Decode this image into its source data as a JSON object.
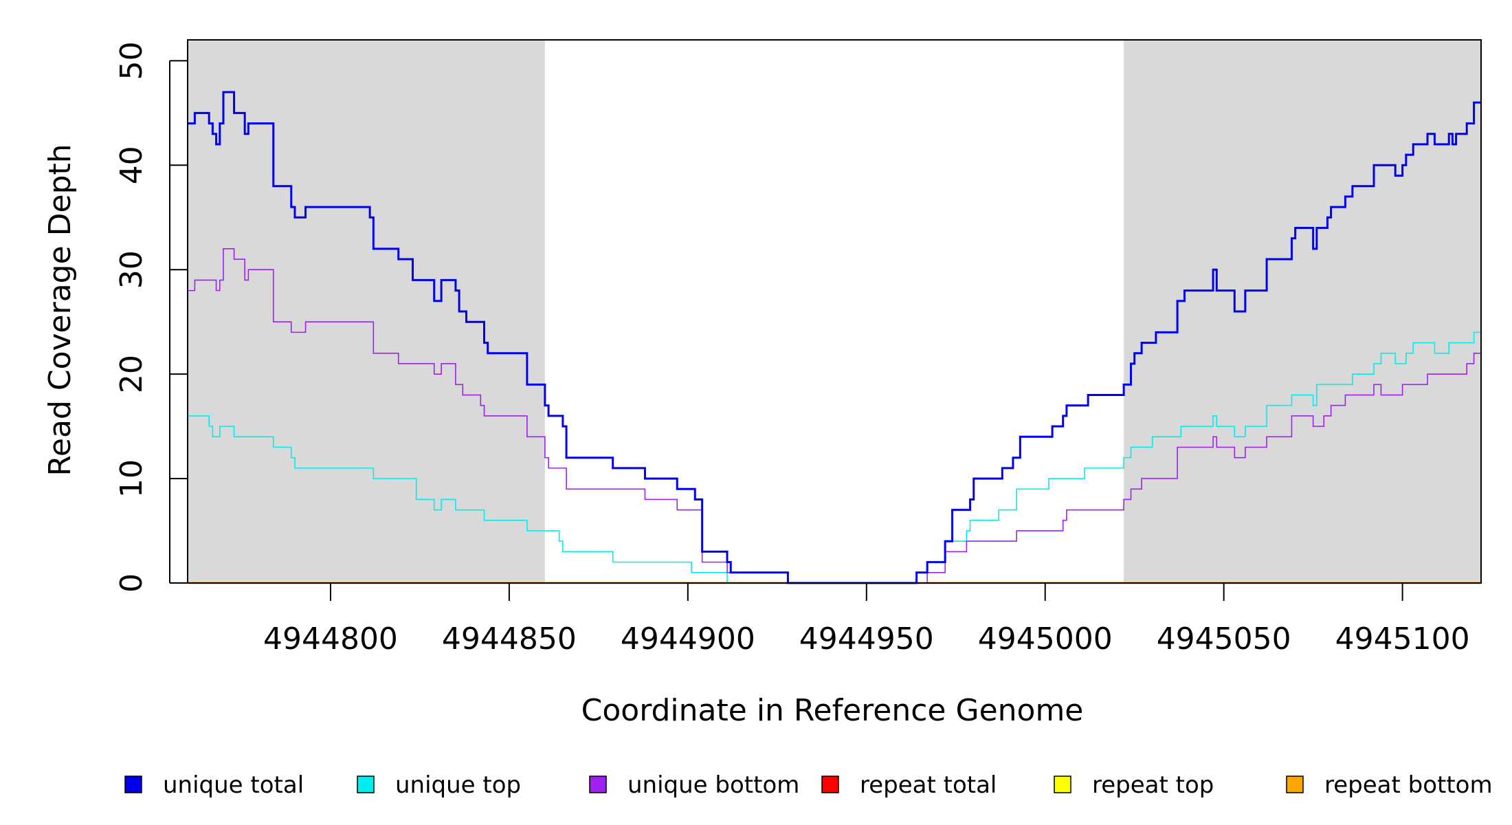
{
  "chart_data": {
    "type": "line",
    "title": "",
    "xlabel": "Coordinate in Reference Genome",
    "ylabel": "Read Coverage Depth",
    "xlim": [
      4944760,
      4945122
    ],
    "ylim": [
      0,
      52
    ],
    "x_ticks": [
      4944800,
      4944850,
      4944900,
      4944950,
      4945000,
      4945050,
      4945100
    ],
    "x_tick_labels": [
      "4944800",
      "4944850",
      "4944900",
      "4944950",
      "4945000",
      "4945050",
      "4945100"
    ],
    "y_ticks": [
      0,
      10,
      20,
      30,
      40,
      50
    ],
    "y_tick_labels": [
      "0",
      "10",
      "20",
      "30",
      "40",
      "50"
    ],
    "grid": false,
    "legend_position": "bottom",
    "shaded_regions": [
      {
        "x0": 4944760,
        "x1": 4944860,
        "color": "#d9d9d9"
      },
      {
        "x0": 4945022,
        "x1": 4945122,
        "color": "#d9d9d9"
      }
    ],
    "series": [
      {
        "name": "unique total",
        "color": "#0000ee",
        "width": 3,
        "points": [
          [
            4944760,
            44
          ],
          [
            4944762,
            45
          ],
          [
            4944766,
            44
          ],
          [
            4944767,
            43
          ],
          [
            4944768,
            42
          ],
          [
            4944769,
            44
          ],
          [
            4944770,
            47
          ],
          [
            4944773,
            45
          ],
          [
            4944776,
            43
          ],
          [
            4944777,
            44
          ],
          [
            4944784,
            38
          ],
          [
            4944789,
            36
          ],
          [
            4944790,
            35
          ],
          [
            4944793,
            36
          ],
          [
            4944811,
            35
          ],
          [
            4944812,
            32
          ],
          [
            4944819,
            31
          ],
          [
            4944823,
            29
          ],
          [
            4944829,
            27
          ],
          [
            4944831,
            29
          ],
          [
            4944835,
            28
          ],
          [
            4944836,
            26
          ],
          [
            4944838,
            25
          ],
          [
            4944843,
            23
          ],
          [
            4944844,
            22
          ],
          [
            4944855,
            19
          ],
          [
            4944860,
            17
          ],
          [
            4944861,
            16
          ],
          [
            4944865,
            15
          ],
          [
            4944866,
            12
          ],
          [
            4944879,
            11
          ],
          [
            4944888,
            10
          ],
          [
            4944897,
            9
          ],
          [
            4944902,
            8
          ],
          [
            4944904,
            3
          ],
          [
            4944911,
            2
          ],
          [
            4944912,
            1
          ],
          [
            4944928,
            0
          ],
          [
            4944964,
            1
          ],
          [
            4944967,
            2
          ],
          [
            4944972,
            4
          ],
          [
            4944974,
            7
          ],
          [
            4944979,
            8
          ],
          [
            4944980,
            10
          ],
          [
            4944988,
            11
          ],
          [
            4944991,
            12
          ],
          [
            4944993,
            14
          ],
          [
            4945002,
            15
          ],
          [
            4945005,
            16
          ],
          [
            4945006,
            17
          ],
          [
            4945012,
            18
          ],
          [
            4945022,
            19
          ],
          [
            4945024,
            21
          ],
          [
            4945025,
            22
          ],
          [
            4945027,
            23
          ],
          [
            4945031,
            24
          ],
          [
            4945037,
            27
          ],
          [
            4945039,
            28
          ],
          [
            4945047,
            30
          ],
          [
            4945048,
            28
          ],
          [
            4945053,
            26
          ],
          [
            4945056,
            28
          ],
          [
            4945062,
            31
          ],
          [
            4945069,
            33
          ],
          [
            4945070,
            34
          ],
          [
            4945075,
            32
          ],
          [
            4945076,
            34
          ],
          [
            4945079,
            35
          ],
          [
            4945080,
            36
          ],
          [
            4945084,
            37
          ],
          [
            4945086,
            38
          ],
          [
            4945092,
            40
          ],
          [
            4945098,
            39
          ],
          [
            4945100,
            40
          ],
          [
            4945101,
            41
          ],
          [
            4945103,
            42
          ],
          [
            4945107,
            43
          ],
          [
            4945109,
            42
          ],
          [
            4945113,
            43
          ],
          [
            4945114,
            42
          ],
          [
            4945115,
            43
          ],
          [
            4945118,
            44
          ],
          [
            4945120,
            46
          ]
        ]
      },
      {
        "name": "unique top",
        "color": "#00eeee",
        "width": 1.6,
        "points": [
          [
            4944760,
            16
          ],
          [
            4944766,
            15
          ],
          [
            4944767,
            14
          ],
          [
            4944769,
            15
          ],
          [
            4944773,
            14
          ],
          [
            4944784,
            13
          ],
          [
            4944789,
            12
          ],
          [
            4944790,
            11
          ],
          [
            4944812,
            10
          ],
          [
            4944824,
            8
          ],
          [
            4944829,
            7
          ],
          [
            4944831,
            8
          ],
          [
            4944835,
            7
          ],
          [
            4944843,
            6
          ],
          [
            4944855,
            5
          ],
          [
            4944864,
            4
          ],
          [
            4944865,
            3
          ],
          [
            4944872,
            3
          ],
          [
            4944879,
            2
          ],
          [
            4944901,
            1
          ],
          [
            4944911,
            0
          ],
          [
            4944964,
            1
          ],
          [
            4944967,
            2
          ],
          [
            4944972,
            4
          ],
          [
            4944978,
            5
          ],
          [
            4944979,
            6
          ],
          [
            4944987,
            7
          ],
          [
            4944992,
            9
          ],
          [
            4945001,
            10
          ],
          [
            4945011,
            11
          ],
          [
            4945022,
            12
          ],
          [
            4945024,
            13
          ],
          [
            4945030,
            14
          ],
          [
            4945038,
            15
          ],
          [
            4945047,
            16
          ],
          [
            4945048,
            15
          ],
          [
            4945053,
            14
          ],
          [
            4945056,
            15
          ],
          [
            4945062,
            17
          ],
          [
            4945069,
            18
          ],
          [
            4945075,
            17
          ],
          [
            4945076,
            19
          ],
          [
            4945086,
            20
          ],
          [
            4945092,
            21
          ],
          [
            4945094,
            22
          ],
          [
            4945098,
            21
          ],
          [
            4945101,
            22
          ],
          [
            4945103,
            23
          ],
          [
            4945109,
            22
          ],
          [
            4945113,
            23
          ],
          [
            4945115,
            23
          ],
          [
            4945120,
            24
          ]
        ]
      },
      {
        "name": "unique bottom",
        "color": "#a020f0",
        "width": 1.6,
        "points": [
          [
            4944760,
            28
          ],
          [
            4944762,
            29
          ],
          [
            4944768,
            28
          ],
          [
            4944769,
            29
          ],
          [
            4944770,
            32
          ],
          [
            4944773,
            31
          ],
          [
            4944776,
            29
          ],
          [
            4944777,
            30
          ],
          [
            4944784,
            25
          ],
          [
            4944789,
            24
          ],
          [
            4944793,
            25
          ],
          [
            4944812,
            22
          ],
          [
            4944819,
            21
          ],
          [
            4944829,
            20
          ],
          [
            4944831,
            21
          ],
          [
            4944835,
            19
          ],
          [
            4944837,
            18
          ],
          [
            4944842,
            17
          ],
          [
            4944843,
            16
          ],
          [
            4944855,
            14
          ],
          [
            4944860,
            12
          ],
          [
            4944861,
            11
          ],
          [
            4944866,
            9
          ],
          [
            4944888,
            8
          ],
          [
            4944897,
            7
          ],
          [
            4944904,
            2
          ],
          [
            4944911,
            1
          ],
          [
            4944928,
            0
          ],
          [
            4944967,
            1
          ],
          [
            4944972,
            3
          ],
          [
            4944978,
            4
          ],
          [
            4944992,
            5
          ],
          [
            4945005,
            6
          ],
          [
            4945006,
            7
          ],
          [
            4945022,
            8
          ],
          [
            4945024,
            9
          ],
          [
            4945027,
            10
          ],
          [
            4945037,
            13
          ],
          [
            4945047,
            14
          ],
          [
            4945048,
            13
          ],
          [
            4945053,
            12
          ],
          [
            4945056,
            13
          ],
          [
            4945062,
            14
          ],
          [
            4945069,
            16
          ],
          [
            4945075,
            15
          ],
          [
            4945078,
            16
          ],
          [
            4945080,
            17
          ],
          [
            4945084,
            18
          ],
          [
            4945092,
            19
          ],
          [
            4945094,
            18
          ],
          [
            4945100,
            19
          ],
          [
            4945107,
            20
          ],
          [
            4945118,
            21
          ],
          [
            4945120,
            22
          ]
        ]
      },
      {
        "name": "repeat total",
        "color": "#ff0000",
        "width": 2,
        "points": [
          [
            4944760,
            0
          ],
          [
            4945122,
            0
          ]
        ]
      },
      {
        "name": "repeat top",
        "color": "#ffff00",
        "width": 2,
        "points": [
          [
            4944760,
            0
          ],
          [
            4945122,
            0
          ]
        ]
      },
      {
        "name": "repeat bottom",
        "color": "#ffa500",
        "width": 3,
        "points": [
          [
            4944760,
            0
          ],
          [
            4945122,
            0
          ]
        ]
      }
    ]
  }
}
